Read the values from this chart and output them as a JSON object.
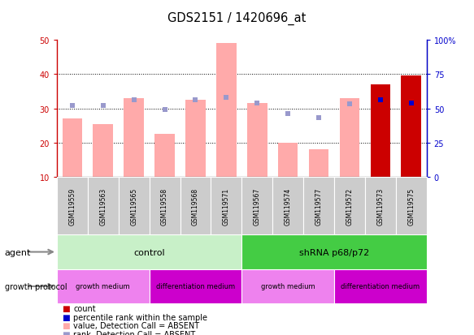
{
  "title": "GDS2151 / 1420696_at",
  "samples": [
    "GSM119559",
    "GSM119563",
    "GSM119565",
    "GSM119558",
    "GSM119568",
    "GSM119571",
    "GSM119567",
    "GSM119574",
    "GSM119577",
    "GSM119572",
    "GSM119573",
    "GSM119575"
  ],
  "value_absent": [
    27,
    25.5,
    33,
    22.5,
    32.5,
    49,
    31.5,
    20,
    18,
    33,
    null,
    null
  ],
  "rank_absent_pct": [
    52,
    52,
    56,
    49,
    56,
    58,
    54,
    46,
    43,
    53,
    null,
    null
  ],
  "count_present": [
    null,
    null,
    null,
    null,
    null,
    null,
    null,
    null,
    null,
    null,
    37,
    39.5
  ],
  "rank_present_pct": [
    null,
    null,
    null,
    null,
    null,
    null,
    null,
    null,
    null,
    null,
    56,
    54
  ],
  "ylim_left": [
    10,
    50
  ],
  "ylim_right": [
    0,
    100
  ],
  "yticks_left": [
    10,
    20,
    30,
    40,
    50
  ],
  "yticks_right": [
    0,
    25,
    50,
    75,
    100
  ],
  "ytick_labels_left": [
    "10",
    "20",
    "30",
    "40",
    "50"
  ],
  "ytick_labels_right": [
    "0",
    "25",
    "50",
    "75",
    "100%"
  ],
  "agent_groups": [
    {
      "label": "control",
      "color": "#c8f0c8",
      "start": 0,
      "end": 6
    },
    {
      "label": "shRNA p68/p72",
      "color": "#44cc44",
      "start": 6,
      "end": 12
    }
  ],
  "growth_groups": [
    {
      "label": "growth medium",
      "color": "#ee82ee",
      "start": 0,
      "end": 3
    },
    {
      "label": "differentiation medium",
      "color": "#cc00cc",
      "start": 3,
      "end": 6
    },
    {
      "label": "growth medium",
      "color": "#ee82ee",
      "start": 6,
      "end": 9
    },
    {
      "label": "differentiation medium",
      "color": "#cc00cc",
      "start": 9,
      "end": 12
    }
  ],
  "bar_color_absent": "#ffaaaa",
  "bar_color_present": "#cc0000",
  "rank_absent_color": "#9999cc",
  "rank_present_color": "#0000cc",
  "axis_left_color": "#cc0000",
  "axis_right_color": "#0000cc",
  "sample_box_color": "#cccccc",
  "legend_items": [
    {
      "color": "#cc0000",
      "label": "count"
    },
    {
      "color": "#0000cc",
      "label": "percentile rank within the sample"
    },
    {
      "color": "#ffaaaa",
      "label": "value, Detection Call = ABSENT"
    },
    {
      "color": "#9999cc",
      "label": "rank, Detection Call = ABSENT"
    }
  ]
}
